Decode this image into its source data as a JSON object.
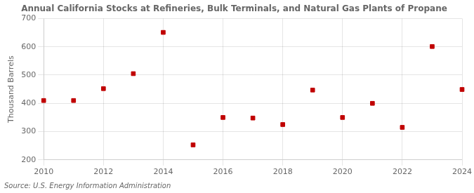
{
  "chart_data": {
    "type": "scatter",
    "title": "Annual California Stocks at Refineries, Bulk Terminals, and Natural Gas Plants of Propane",
    "ylabel": "Thousand Barrels",
    "source": "Source: U.S. Energy Information Administration",
    "x": [
      2010,
      2011,
      2012,
      2013,
      2014,
      2015,
      2016,
      2017,
      2018,
      2019,
      2020,
      2021,
      2022,
      2023,
      2024
    ],
    "values": [
      410,
      410,
      452,
      505,
      651,
      253,
      350,
      348,
      325,
      447,
      350,
      400,
      315,
      601,
      449
    ],
    "color": "#c00000",
    "marker": "square",
    "grid": true,
    "xlim": [
      2010,
      2024
    ],
    "xticks": [
      2010,
      2012,
      2014,
      2016,
      2018,
      2020,
      2022,
      2024
    ],
    "ylim": [
      200,
      700
    ],
    "yticks": [
      200,
      300,
      400,
      500,
      600,
      700
    ]
  }
}
